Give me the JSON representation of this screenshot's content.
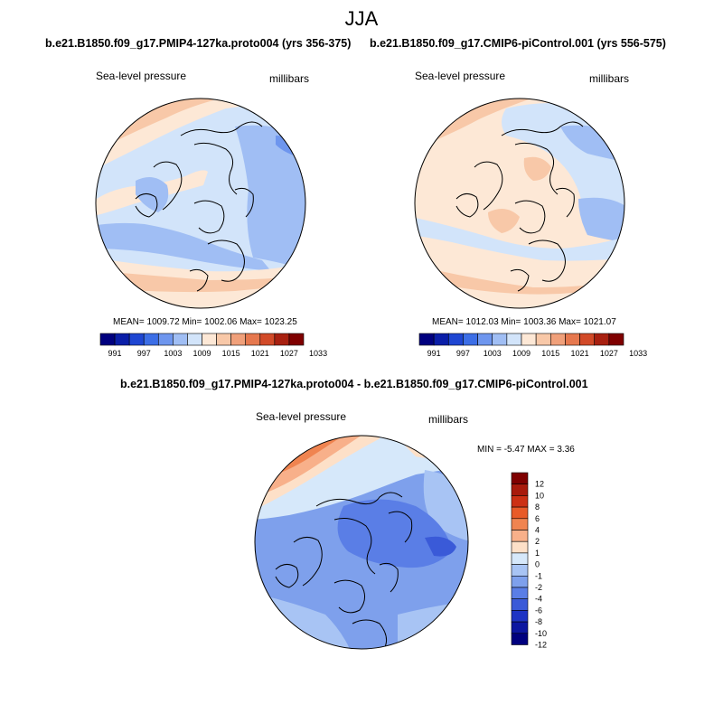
{
  "season": "JJA",
  "panels": [
    {
      "title": "b.e21.B1850.f09_g17.PMIP4-127ka.proto004 (yrs 356-375)",
      "variable": "Sea-level pressure",
      "units": "millibars",
      "stats": "MEAN= 1009.72  Min= 1002.06  Max= 1023.25",
      "colorbar_ticks": [
        "991",
        "997",
        "1003",
        "1009",
        "1015",
        "1021",
        "1027",
        "1033"
      ]
    },
    {
      "title": "b.e21.B1850.f09_g17.CMIP6-piControl.001 (yrs 556-575)",
      "variable": "Sea-level pressure",
      "units": "millibars",
      "stats": "MEAN= 1012.03  Min= 1003.36  Max= 1021.07",
      "colorbar_ticks": [
        "991",
        "997",
        "1003",
        "1009",
        "1015",
        "1021",
        "1027",
        "1033"
      ]
    },
    {
      "title": "b.e21.B1850.f09_g17.PMIP4-127ka.proto004 - b.e21.B1850.f09_g17.CMIP6-piControl.001",
      "variable": "Sea-level pressure",
      "units": "millibars",
      "stats": "MIN =  -5.47 MAX =   3.36",
      "colorbar_ticks": [
        "12",
        "10",
        "8",
        "6",
        "4",
        "2",
        "1",
        "0",
        "-1",
        "-2",
        "-4",
        "-6",
        "-8",
        "-10",
        "-12"
      ]
    }
  ],
  "colors": {
    "abs_scale": [
      "#00007f",
      "#0a1ea8",
      "#1e46d2",
      "#3c6ee6",
      "#6e96ee",
      "#a0bef4",
      "#d2e4fa",
      "#fde8d6",
      "#f8c8a8",
      "#f0a07a",
      "#e6784e",
      "#d24a28",
      "#a82010",
      "#7f0000"
    ],
    "diff_scale": [
      "#7f0000",
      "#a81a0c",
      "#cc3014",
      "#e85a28",
      "#f08450",
      "#f8b08a",
      "#fde0c8",
      "#d6e8fa",
      "#a8c4f4",
      "#7ea0ec",
      "#5a7ee6",
      "#3a5ad8",
      "#1e34c4",
      "#0c16a0",
      "#00007f"
    ]
  }
}
